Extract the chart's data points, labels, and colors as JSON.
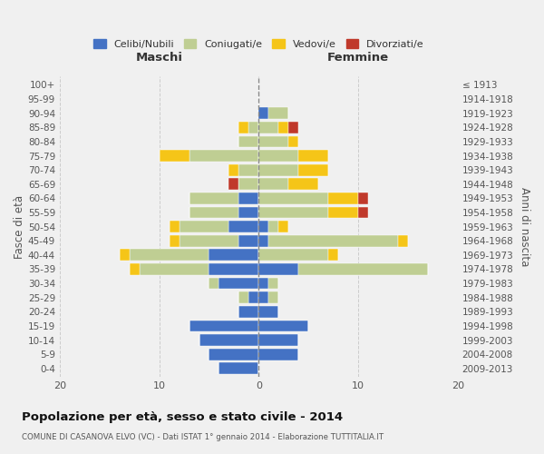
{
  "age_groups": [
    "0-4",
    "5-9",
    "10-14",
    "15-19",
    "20-24",
    "25-29",
    "30-34",
    "35-39",
    "40-44",
    "45-49",
    "50-54",
    "55-59",
    "60-64",
    "65-69",
    "70-74",
    "75-79",
    "80-84",
    "85-89",
    "90-94",
    "95-99",
    "100+"
  ],
  "birth_years": [
    "2009-2013",
    "2004-2008",
    "1999-2003",
    "1994-1998",
    "1989-1993",
    "1984-1988",
    "1979-1983",
    "1974-1978",
    "1969-1973",
    "1964-1968",
    "1959-1963",
    "1954-1958",
    "1949-1953",
    "1944-1948",
    "1939-1943",
    "1934-1938",
    "1929-1933",
    "1924-1928",
    "1919-1923",
    "1914-1918",
    "≤ 1913"
  ],
  "male": {
    "celibe": [
      4,
      5,
      6,
      7,
      2,
      1,
      4,
      5,
      5,
      2,
      3,
      2,
      2,
      0,
      0,
      0,
      0,
      0,
      0,
      0,
      0
    ],
    "coniugato": [
      0,
      0,
      0,
      0,
      0,
      1,
      1,
      7,
      8,
      6,
      5,
      5,
      5,
      2,
      2,
      7,
      2,
      1,
      0,
      0,
      0
    ],
    "vedovo": [
      0,
      0,
      0,
      0,
      0,
      0,
      0,
      1,
      1,
      1,
      1,
      0,
      0,
      0,
      1,
      3,
      0,
      1,
      0,
      0,
      0
    ],
    "divorziato": [
      0,
      0,
      0,
      0,
      0,
      0,
      0,
      0,
      0,
      0,
      0,
      0,
      0,
      1,
      0,
      0,
      0,
      0,
      0,
      0,
      0
    ]
  },
  "female": {
    "nubile": [
      0,
      4,
      4,
      5,
      2,
      1,
      1,
      4,
      0,
      1,
      1,
      0,
      0,
      0,
      0,
      0,
      0,
      0,
      1,
      0,
      0
    ],
    "coniugata": [
      0,
      0,
      0,
      0,
      0,
      1,
      1,
      13,
      7,
      13,
      1,
      7,
      7,
      3,
      4,
      4,
      3,
      2,
      2,
      0,
      0
    ],
    "vedova": [
      0,
      0,
      0,
      0,
      0,
      0,
      0,
      0,
      1,
      1,
      1,
      3,
      3,
      3,
      3,
      3,
      1,
      1,
      0,
      0,
      0
    ],
    "divorziata": [
      0,
      0,
      0,
      0,
      0,
      0,
      0,
      0,
      0,
      0,
      0,
      1,
      1,
      0,
      0,
      0,
      0,
      1,
      0,
      0,
      0
    ]
  },
  "colors": {
    "celibe_nubile": "#4472C4",
    "coniugato_a": "#BFCE93",
    "vedovo_a": "#F5C518",
    "divorziato_a": "#C0392B"
  },
  "title": "Popolazione per età, sesso e stato civile - 2014",
  "subtitle": "COMUNE DI CASANOVA ELVO (VC) - Dati ISTAT 1° gennaio 2014 - Elaborazione TUTTITALIA.IT",
  "ylabel": "Fasce di età",
  "ylabel_right": "Anni di nascita",
  "xlabel_left": "Maschi",
  "xlabel_right": "Femmine",
  "xlim": 20,
  "legend_labels": [
    "Celibi/Nubili",
    "Coniugati/e",
    "Vedovi/e",
    "Divorziati/e"
  ],
  "background_color": "#f0f0f0"
}
